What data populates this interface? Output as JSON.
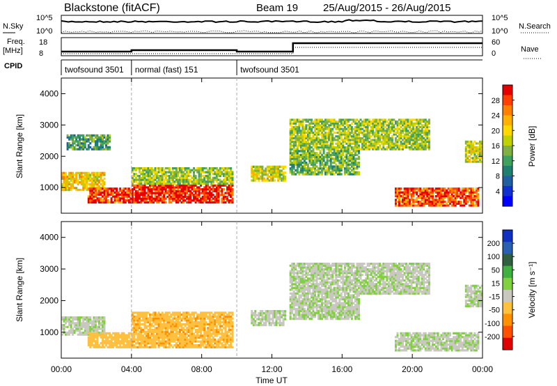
{
  "header": {
    "title": "Blackstone (fitACF)",
    "beam": "Beam 19",
    "date_range": "25/Aug/2015 - 26/Aug/2015"
  },
  "status_panels": {
    "nsky_label": "N.Sky",
    "nsky_ticks": [
      "10^5",
      "10^0"
    ],
    "nsearch_label": "N.Search",
    "nsearch_ticks": [
      "10^5",
      "10^0"
    ],
    "freq_label": "Freq.",
    "freq_unit": "[MHz]",
    "freq_ticks": [
      "18",
      "8"
    ],
    "nave_label": "Nave",
    "nave_ticks": [
      "60",
      "0"
    ],
    "cpid_label": "CPID",
    "cpid_segments": [
      {
        "label": "twofsound 3501",
        "start": 0,
        "end": 4
      },
      {
        "label": "normal (fast) 151",
        "start": 4,
        "end": 10
      },
      {
        "label": "twofsound 3501",
        "start": 10,
        "end": 24
      }
    ]
  },
  "x_axis": {
    "label": "Time UT",
    "ticks": [
      "00:00",
      "04:00",
      "08:00",
      "12:00",
      "16:00",
      "20:00",
      "00:00"
    ],
    "range_hours": [
      0,
      24
    ]
  },
  "chart_data": [
    {
      "type": "heatmap",
      "panel": "power",
      "ylabel": "Slant Range [km]",
      "ylim": [
        180,
        4500
      ],
      "yticks": [
        1000,
        2000,
        3000,
        4000
      ],
      "colorbar": {
        "label": "Power [dB]",
        "ticks": [
          "28",
          "24",
          "20",
          "16",
          "12",
          "8",
          "4"
        ],
        "colors": [
          "#e50000",
          "#ff4000",
          "#ff8000",
          "#ffb000",
          "#ffd800",
          "#c0d000",
          "#80b040",
          "#40a060",
          "#208070",
          "#2060a0",
          "#1030d0",
          "#0000ff"
        ]
      },
      "regions": [
        {
          "t0": 0.0,
          "t1": 2.5,
          "r0": 900,
          "r1": 1500,
          "value": 18
        },
        {
          "t0": 1.5,
          "t1": 4.0,
          "r0": 500,
          "r1": 1000,
          "value": 26
        },
        {
          "t0": 4.0,
          "t1": 9.8,
          "r0": 500,
          "r1": 1100,
          "value": 27
        },
        {
          "t0": 4.0,
          "t1": 9.8,
          "r0": 1100,
          "r1": 1650,
          "value": 14
        },
        {
          "t0": 0.3,
          "t1": 2.8,
          "r0": 2200,
          "r1": 2700,
          "value": 10
        },
        {
          "t0": 10.8,
          "t1": 12.8,
          "r0": 1200,
          "r1": 1700,
          "value": 16
        },
        {
          "t0": 13.0,
          "t1": 21.0,
          "r0": 2200,
          "r1": 3200,
          "value": 14
        },
        {
          "t0": 13.0,
          "t1": 17.0,
          "r0": 1400,
          "r1": 2200,
          "value": 12
        },
        {
          "t0": 19.0,
          "t1": 23.8,
          "r0": 400,
          "r1": 1000,
          "value": 25
        },
        {
          "t0": 23.0,
          "t1": 24.0,
          "r0": 1800,
          "r1": 2500,
          "value": 16
        }
      ]
    },
    {
      "type": "heatmap",
      "panel": "velocity",
      "ylabel": "Slant Range [km]",
      "ylim": [
        180,
        4500
      ],
      "yticks": [
        1000,
        2000,
        3000,
        4000
      ],
      "colorbar": {
        "label": "Velocity [m s⁻¹]",
        "ticks": [
          "200",
          "100",
          "50",
          "15",
          "-15",
          "-50",
          "-100",
          "-200"
        ],
        "colors": [
          "#1030c0",
          "#2a60b0",
          "#306040",
          "#40b040",
          "#80d040",
          "#c8c8c0",
          "#ffc040",
          "#ff9000",
          "#ff5000",
          "#e00000"
        ]
      },
      "regions": [
        {
          "t0": 0.0,
          "t1": 2.5,
          "r0": 900,
          "r1": 1500,
          "value": 0
        },
        {
          "t0": 1.5,
          "t1": 4.0,
          "r0": 500,
          "r1": 1000,
          "value": -30
        },
        {
          "t0": 4.0,
          "t1": 9.8,
          "r0": 500,
          "r1": 1650,
          "value": -40
        },
        {
          "t0": 10.8,
          "t1": 12.8,
          "r0": 1200,
          "r1": 1700,
          "value": 0
        },
        {
          "t0": 13.0,
          "t1": 21.0,
          "r0": 2200,
          "r1": 3200,
          "value": 0
        },
        {
          "t0": 13.0,
          "t1": 17.0,
          "r0": 1400,
          "r1": 2200,
          "value": 0
        },
        {
          "t0": 19.0,
          "t1": 23.8,
          "r0": 400,
          "r1": 1000,
          "value": 0
        },
        {
          "t0": 23.0,
          "t1": 24.0,
          "r0": 1800,
          "r1": 2500,
          "value": 0
        }
      ]
    }
  ]
}
